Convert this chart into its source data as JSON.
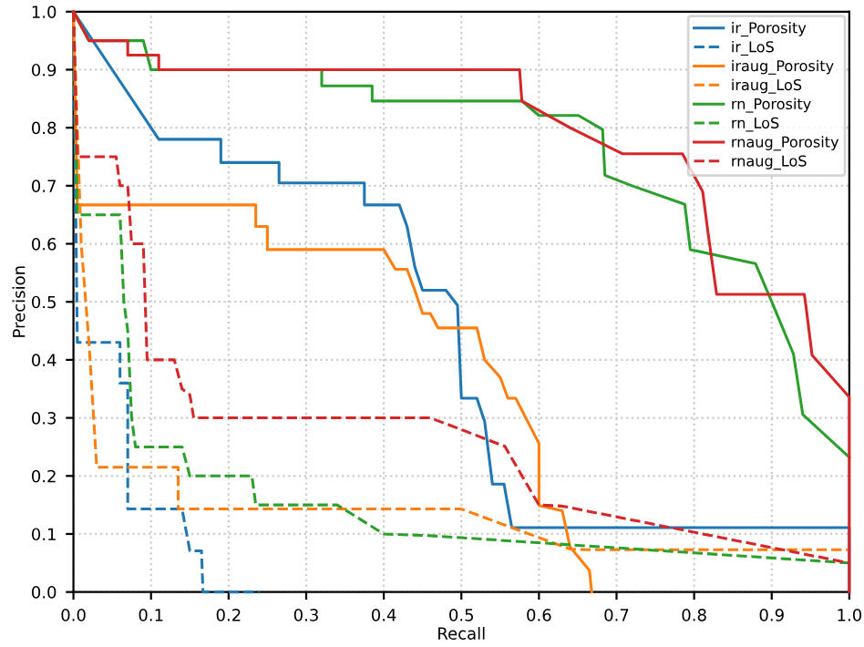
{
  "chart_data": {
    "type": "line",
    "xlabel": "Recall",
    "ylabel": "Precision",
    "xlim": [
      0,
      1
    ],
    "ylim": [
      0,
      1
    ],
    "xticks": [
      {
        "value": 0,
        "label": "0.0"
      },
      0.1,
      0.2,
      0.3,
      0.4,
      0.5,
      0.6,
      0.7,
      0.8,
      0.9,
      {
        "value": 1,
        "label": "1.0"
      }
    ],
    "yticks": [
      {
        "value": 0,
        "label": "0.0"
      },
      0.1,
      0.2,
      0.3,
      0.4,
      0.5,
      0.6,
      0.7,
      0.8,
      0.9,
      {
        "value": 1,
        "label": "1.0"
      }
    ],
    "grid": true,
    "legend": "top right",
    "series": [
      {
        "name": "ir_Porosity",
        "color": "#1f77b4",
        "line_style": "solid",
        "x": [
          0,
          0.11,
          0.19,
          0.19,
          0.265,
          0.265,
          0.375,
          0.375,
          0.42,
          0.43,
          0.44,
          0.45,
          0.48,
          0.495,
          0.5,
          0.52,
          0.53,
          0.54,
          0.555,
          0.565,
          1.0,
          1.0
        ],
        "values": [
          1,
          0.78,
          0.78,
          0.74,
          0.74,
          0.705,
          0.705,
          0.667,
          0.667,
          0.63,
          0.56,
          0.52,
          0.52,
          0.494,
          0.334,
          0.334,
          0.294,
          0.186,
          0.186,
          0.111,
          0.111,
          0
        ]
      },
      {
        "name": "ir_LoS",
        "color": "#1f77b4",
        "line_style": "dashed",
        "x": [
          0,
          0.005,
          0.06,
          0.06,
          0.07,
          0.07,
          0.14,
          0.15,
          0.165,
          0.167,
          0.24
        ],
        "values": [
          1,
          0.43,
          0.43,
          0.36,
          0.36,
          0.143,
          0.143,
          0.071,
          0.071,
          0,
          0
        ]
      },
      {
        "name": "iraug_Porosity",
        "color": "#ff7f0e",
        "line_style": "solid",
        "x": [
          0,
          0.005,
          0.235,
          0.235,
          0.25,
          0.25,
          0.4,
          0.415,
          0.43,
          0.44,
          0.45,
          0.46,
          0.47,
          0.52,
          0.53,
          0.55,
          0.56,
          0.57,
          0.6,
          0.6,
          0.63,
          0.64,
          0.665,
          0.668
        ],
        "values": [
          1,
          0.667,
          0.667,
          0.63,
          0.63,
          0.59,
          0.59,
          0.556,
          0.556,
          0.52,
          0.48,
          0.48,
          0.455,
          0.455,
          0.4,
          0.37,
          0.334,
          0.334,
          0.256,
          0.149,
          0.14,
          0.078,
          0.037,
          0
        ]
      },
      {
        "name": "iraug_LoS",
        "color": "#ff7f0e",
        "line_style": "dashed",
        "x": [
          0,
          0.01,
          0.02,
          0.03,
          0.135,
          0.135,
          0.5,
          0.565,
          0.64,
          0.66,
          1.0
        ],
        "values": [
          1,
          0.6,
          0.43,
          0.215,
          0.215,
          0.143,
          0.143,
          0.111,
          0.074,
          0.073,
          0.073
        ]
      },
      {
        "name": "rn_Porosity",
        "color": "#2ca02c",
        "line_style": "solid",
        "x": [
          0,
          0.02,
          0.09,
          0.1,
          0.32,
          0.32,
          0.385,
          0.385,
          0.578,
          0.6,
          0.651,
          0.682,
          0.685,
          0.72,
          0.788,
          0.795,
          0.879,
          0.902,
          0.928,
          0.94,
          1.0
        ],
        "values": [
          1,
          0.95,
          0.95,
          0.9,
          0.9,
          0.872,
          0.872,
          0.846,
          0.846,
          0.821,
          0.821,
          0.797,
          0.718,
          0.7,
          0.668,
          0.59,
          0.566,
          0.494,
          0.41,
          0.306,
          0.232
        ]
      },
      {
        "name": "rn_LoS",
        "color": "#2ca02c",
        "line_style": "dashed",
        "x": [
          0,
          0.005,
          0.06,
          0.065,
          0.07,
          0.075,
          0.08,
          0.14,
          0.15,
          0.23,
          0.235,
          0.34,
          0.4,
          0.46,
          1.0
        ],
        "values": [
          1,
          0.65,
          0.65,
          0.5,
          0.45,
          0.3,
          0.25,
          0.25,
          0.2,
          0.2,
          0.15,
          0.15,
          0.1,
          0.097,
          0.05
        ]
      },
      {
        "name": "rnaug_Porosity",
        "color": "#d62728",
        "line_style": "solid",
        "x": [
          0,
          0.02,
          0.07,
          0.07,
          0.11,
          0.11,
          0.575,
          0.578,
          0.64,
          0.708,
          0.785,
          0.811,
          0.818,
          0.829,
          0.942,
          0.944,
          0.952,
          1.0,
          1.0
        ],
        "values": [
          1,
          0.95,
          0.95,
          0.925,
          0.925,
          0.9,
          0.9,
          0.846,
          0.8,
          0.755,
          0.755,
          0.69,
          0.618,
          0.513,
          0.513,
          0.494,
          0.408,
          0.336,
          0
        ]
      },
      {
        "name": "rnaug_LoS",
        "color": "#d62728",
        "line_style": "dashed",
        "x": [
          0,
          0.005,
          0.055,
          0.06,
          0.07,
          0.075,
          0.09,
          0.095,
          0.13,
          0.14,
          0.15,
          0.155,
          0.46,
          0.48,
          0.556,
          0.6,
          0.63,
          1.0
        ],
        "values": [
          1,
          0.75,
          0.75,
          0.7,
          0.7,
          0.6,
          0.6,
          0.4,
          0.4,
          0.35,
          0.34,
          0.3,
          0.3,
          0.29,
          0.251,
          0.15,
          0.148,
          0.05
        ]
      }
    ]
  }
}
